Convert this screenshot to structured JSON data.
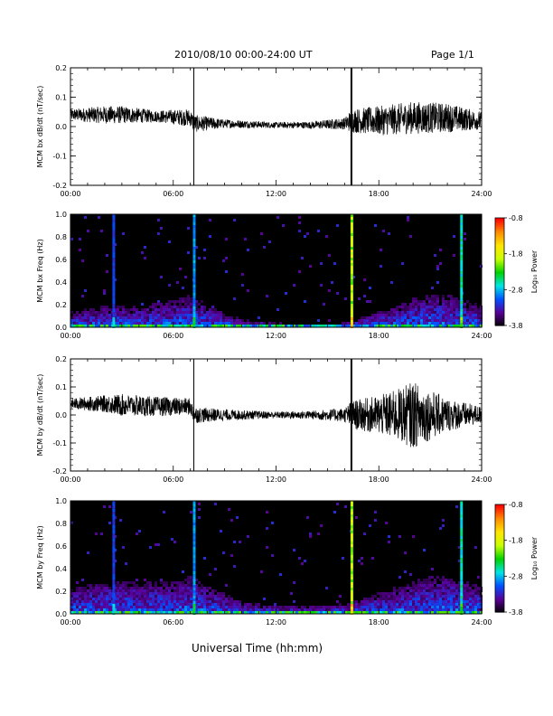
{
  "header": {
    "title": "2010/08/10  00:00-24:00 UT",
    "page": "Page 1/1"
  },
  "footer": {
    "xlabel": "Universal Time (hh:mm)"
  },
  "colorbar": {
    "label": "Log₁₀ Power",
    "ticks": [
      "-0.8",
      "-1.8",
      "-2.8",
      "-3.8"
    ],
    "colors": [
      "#000000",
      "#5a0096",
      "#0050ff",
      "#00e6e6",
      "#00d200",
      "#c8ff00",
      "#ffe600",
      "#ff8c00",
      "#ff0000"
    ]
  },
  "chart_data": [
    {
      "type": "line",
      "ylabel": "MCM bx dB/dt (nT/sec)",
      "ylim": [
        -0.2,
        0.2
      ],
      "yticks": [
        "0.2",
        "0.1",
        "0.0",
        "-0.1",
        "-0.2"
      ],
      "xlim": [
        "00:00",
        "24:00"
      ],
      "xticks": [
        "00:00",
        "06:00",
        "12:00",
        "18:00",
        "24:00"
      ],
      "envelope_hours": [
        0,
        2,
        3,
        5,
        7,
        7.2,
        9,
        12,
        14,
        16,
        16.4,
        18,
        20,
        22,
        24
      ],
      "baseline": [
        0.04,
        0.04,
        0.04,
        0.035,
        0.03,
        0.01,
        0.01,
        0.005,
        0.005,
        0.01,
        0.02,
        0.02,
        0.03,
        0.03,
        0.02
      ],
      "amplitude": [
        0.02,
        0.03,
        0.03,
        0.02,
        0.03,
        0.03,
        0.015,
        0.01,
        0.012,
        0.02,
        0.04,
        0.05,
        0.055,
        0.05,
        0.03
      ],
      "spikes": [
        {
          "time": "07:12",
          "min": -0.2,
          "max": 0.2
        },
        {
          "time": "16:24",
          "min": -0.2,
          "max": 0.2
        }
      ]
    },
    {
      "type": "heatmap",
      "ylabel": "MCM bx Freq (Hz)",
      "ylim": [
        0.0,
        1.0
      ],
      "yticks": [
        "1.0",
        "0.8",
        "0.6",
        "0.4",
        "0.2",
        "0.0"
      ],
      "xlim": [
        "00:00",
        "24:00"
      ],
      "xticks": [
        "00:00",
        "06:00",
        "12:00",
        "18:00",
        "24:00"
      ],
      "zlim": [
        -3.8,
        -0.8
      ],
      "envelope_hours": [
        0,
        2,
        4,
        6,
        7,
        8,
        10,
        12,
        14,
        16,
        17,
        18,
        19,
        20,
        21,
        22,
        23,
        24
      ],
      "upper_freq": [
        0.15,
        0.2,
        0.2,
        0.25,
        0.3,
        0.2,
        0.08,
        0.05,
        0.04,
        0.05,
        0.1,
        0.15,
        0.2,
        0.28,
        0.3,
        0.3,
        0.25,
        0.2
      ],
      "vertical_lines": [
        {
          "time": "02:30",
          "intensity": 0.25
        },
        {
          "time": "07:12",
          "intensity": 0.35
        },
        {
          "time": "16:24",
          "intensity": 0.7
        },
        {
          "time": "22:48",
          "intensity": 0.45
        }
      ]
    },
    {
      "type": "line",
      "ylabel": "MCM by dB/dt (nT/sec)",
      "ylim": [
        -0.2,
        0.2
      ],
      "yticks": [
        "0.2",
        "0.1",
        "0.0",
        "-0.1",
        "-0.2"
      ],
      "xlim": [
        "00:00",
        "24:00"
      ],
      "xticks": [
        "00:00",
        "06:00",
        "12:00",
        "18:00",
        "24:00"
      ],
      "envelope_hours": [
        0,
        2,
        3,
        5,
        7,
        7.2,
        9,
        12,
        14,
        16,
        16.4,
        18,
        19,
        20,
        21,
        22,
        24
      ],
      "baseline": [
        0.04,
        0.04,
        0.035,
        0.03,
        0.03,
        0.0,
        0.0,
        0.0,
        0.0,
        0.0,
        0.0,
        0.0,
        0.0,
        0.0,
        0.0,
        0.0,
        0.0
      ],
      "amplitude": [
        0.02,
        0.03,
        0.04,
        0.035,
        0.03,
        0.03,
        0.02,
        0.012,
        0.015,
        0.025,
        0.05,
        0.07,
        0.09,
        0.12,
        0.09,
        0.06,
        0.03
      ],
      "spikes": [
        {
          "time": "07:12",
          "min": -0.2,
          "max": 0.2
        },
        {
          "time": "16:24",
          "min": -0.2,
          "max": 0.2
        }
      ]
    },
    {
      "type": "heatmap",
      "ylabel": "MCM by Freq (Hz)",
      "ylim": [
        0.0,
        1.0
      ],
      "yticks": [
        "1.0",
        "0.8",
        "0.6",
        "0.4",
        "0.2",
        "0.0"
      ],
      "xlim": [
        "00:00",
        "24:00"
      ],
      "xticks": [
        "00:00",
        "06:00",
        "12:00",
        "18:00",
        "24:00"
      ],
      "zlim": [
        -3.8,
        -0.8
      ],
      "envelope_hours": [
        0,
        2,
        4,
        6,
        7,
        8,
        10,
        12,
        14,
        16,
        17,
        18,
        19,
        20,
        21,
        22,
        23,
        24
      ],
      "upper_freq": [
        0.25,
        0.3,
        0.3,
        0.3,
        0.35,
        0.25,
        0.12,
        0.08,
        0.08,
        0.1,
        0.15,
        0.2,
        0.25,
        0.3,
        0.35,
        0.35,
        0.3,
        0.25
      ],
      "vertical_lines": [
        {
          "time": "02:30",
          "intensity": 0.25
        },
        {
          "time": "07:12",
          "intensity": 0.35
        },
        {
          "time": "16:24",
          "intensity": 0.7
        },
        {
          "time": "22:48",
          "intensity": 0.45
        }
      ]
    }
  ]
}
